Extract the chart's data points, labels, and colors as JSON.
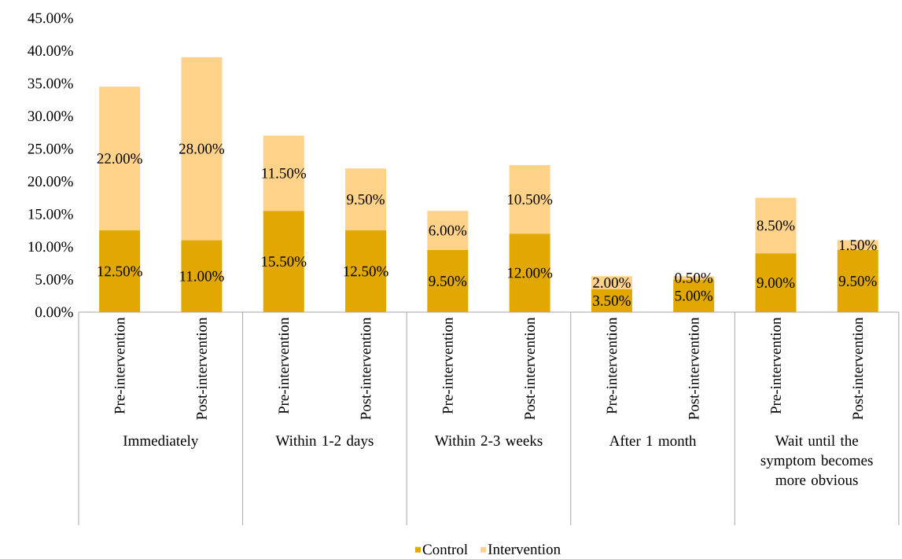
{
  "chart_data": {
    "type": "bar",
    "stacked": true,
    "categories": [
      "Pre-intervention",
      "Post-intervention",
      "Pre-intervention",
      "Post-intervention",
      "Pre-intervention",
      "Post-intervention",
      "Pre-intervention",
      "Post-intervention",
      "Pre-intervention",
      "Post-intervention"
    ],
    "annotations": [
      "Immediately",
      "Within 1-2 days",
      "Within 2-3 weeks",
      "After 1 month",
      "Wait until the symptom becomes more obvious"
    ],
    "series": [
      {
        "name": "Control",
        "color": "#e0a800",
        "values": [
          12.5,
          11,
          15.5,
          12.5,
          9.5,
          12,
          3.5,
          5,
          9,
          9.5
        ],
        "value_labels": [
          "12.50%",
          "11.00%",
          "15.50%",
          "12.50%",
          "9.50%",
          "12.00%",
          "3.50%",
          "5.00%",
          "9.00%",
          "9.50%"
        ]
      },
      {
        "name": "Intervention",
        "color": "#ffd28a",
        "values": [
          22,
          28,
          11.5,
          9.5,
          6,
          10.5,
          2,
          0.5,
          8.5,
          1.5
        ],
        "value_labels": [
          "22.00%",
          "28.00%",
          "11.50%",
          "9.50%",
          "6.00%",
          "10.50%",
          "2.00%",
          "0.50%",
          "8.50%",
          "1.50%"
        ]
      }
    ],
    "ylim": [
      0,
      45
    ],
    "yticks": [
      {
        "value": 0,
        "label": "0.00%"
      },
      {
        "value": 5,
        "label": "5.00%"
      },
      {
        "value": 10,
        "label": "10.00%"
      },
      {
        "value": 15,
        "label": "15.00%"
      },
      {
        "value": 20,
        "label": "20.00%"
      },
      {
        "value": 25,
        "label": "25.00%"
      },
      {
        "value": 30,
        "label": "30.00%"
      },
      {
        "value": 35,
        "label": "35.00%"
      },
      {
        "value": 40,
        "label": "40.00%"
      },
      {
        "value": 45,
        "label": "45.00%"
      }
    ],
    "grid": false,
    "legend": "bottom"
  }
}
